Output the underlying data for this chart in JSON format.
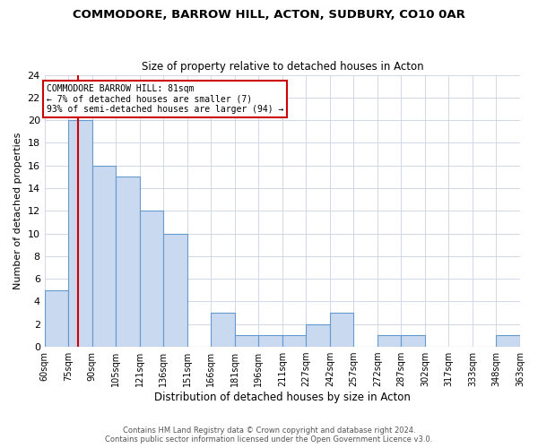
{
  "title": "COMMODORE, BARROW HILL, ACTON, SUDBURY, CO10 0AR",
  "subtitle": "Size of property relative to detached houses in Acton",
  "xlabel": "Distribution of detached houses by size in Acton",
  "ylabel": "Number of detached properties",
  "bin_labels": [
    "60sqm",
    "75sqm",
    "90sqm",
    "105sqm",
    "121sqm",
    "136sqm",
    "151sqm",
    "166sqm",
    "181sqm",
    "196sqm",
    "211sqm",
    "227sqm",
    "242sqm",
    "257sqm",
    "272sqm",
    "287sqm",
    "302sqm",
    "317sqm",
    "333sqm",
    "348sqm",
    "363sqm"
  ],
  "bar_heights": [
    5,
    20,
    16,
    15,
    12,
    10,
    0,
    3,
    1,
    1,
    1,
    2,
    3,
    0,
    1,
    1,
    0,
    0,
    0,
    1
  ],
  "bar_color": "#c9d9f0",
  "bar_edge_color": "#6699cc",
  "subject_line_color": "#cc0000",
  "annotation_title": "COMMODORE BARROW HILL: 81sqm",
  "annotation_line1": "← 7% of detached houses are smaller (7)",
  "annotation_line2": "93% of semi-detached houses are larger (94) →",
  "annotation_box_edge": "#cc0000",
  "ylim": [
    0,
    24
  ],
  "yticks": [
    0,
    2,
    4,
    6,
    8,
    10,
    12,
    14,
    16,
    18,
    20,
    22,
    24
  ],
  "footer1": "Contains HM Land Registry data © Crown copyright and database right 2024.",
  "footer2": "Contains public sector information licensed under the Open Government Licence v3.0.",
  "fig_width": 6.0,
  "fig_height": 5.0,
  "dpi": 100
}
